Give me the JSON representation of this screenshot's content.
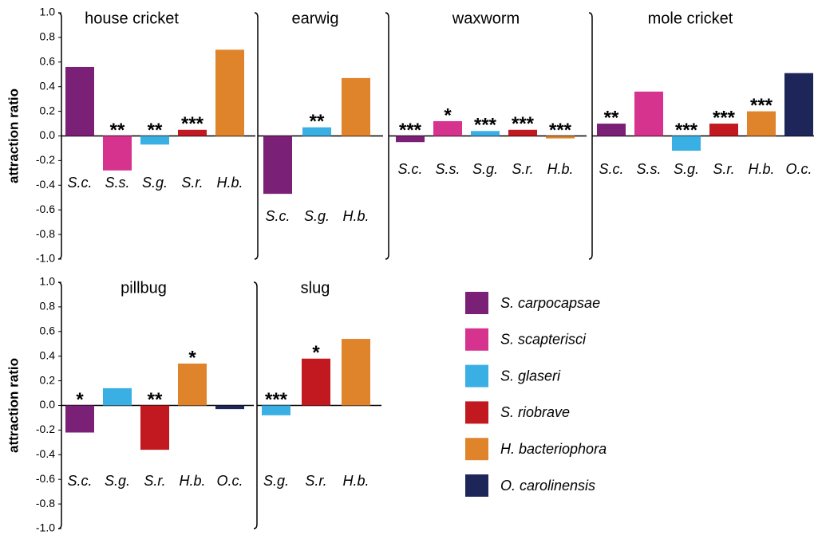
{
  "chart_data": [
    {
      "type": "bar",
      "title": "house cricket",
      "ylabel": "attraction ratio",
      "categories": [
        "S.c.",
        "S.s.",
        "S.g.",
        "S.r.",
        "H.b."
      ],
      "values": [
        0.56,
        -0.28,
        -0.07,
        0.05,
        0.7
      ],
      "colors": [
        "#7b2077",
        "#d6338f",
        "#3aafe4",
        "#c1191f",
        "#e0842c"
      ],
      "annotations": [
        null,
        "**",
        "**",
        "***",
        null
      ],
      "ylim": [
        -1,
        1
      ],
      "yticks": [
        {
          "value": -1,
          "label": "-1.0"
        },
        -0.8,
        -0.6,
        -0.4,
        -0.2,
        {
          "value": 0,
          "label": "0.0"
        },
        0.2,
        0.4,
        0.6,
        0.8,
        {
          "value": 1,
          "label": "1.0"
        }
      ]
    },
    {
      "type": "bar",
      "title": "earwig",
      "categories": [
        "S.c.",
        "S.g.",
        "H.b."
      ],
      "values": [
        -0.47,
        0.07,
        0.47
      ],
      "colors": [
        "#7b2077",
        "#3aafe4",
        "#e0842c"
      ],
      "annotations": [
        null,
        "**",
        null
      ],
      "ylim": [
        -1,
        1
      ]
    },
    {
      "type": "bar",
      "title": "waxworm",
      "categories": [
        "S.c.",
        "S.s.",
        "S.g.",
        "S.r.",
        "H.b."
      ],
      "values": [
        -0.05,
        0.12,
        0.04,
        0.05,
        -0.02
      ],
      "colors": [
        "#7b2077",
        "#d6338f",
        "#3aafe4",
        "#c1191f",
        "#e0842c"
      ],
      "annotations": [
        "***",
        "*",
        "***",
        "***",
        "***"
      ],
      "ylim": [
        -1,
        1
      ]
    },
    {
      "type": "bar",
      "title": "mole cricket",
      "categories": [
        "S.c.",
        "S.s.",
        "S.g.",
        "S.r.",
        "H.b.",
        "O.c."
      ],
      "values": [
        0.1,
        0.36,
        -0.12,
        0.1,
        0.2,
        0.51
      ],
      "colors": [
        "#7b2077",
        "#d6338f",
        "#3aafe4",
        "#c1191f",
        "#e0842c",
        "#1e2659"
      ],
      "annotations": [
        "**",
        null,
        "***",
        "***",
        "***",
        null
      ],
      "ylim": [
        -1,
        1
      ]
    },
    {
      "type": "bar",
      "title": "pillbug",
      "ylabel": "attraction ratio",
      "categories": [
        "S.c.",
        "S.g.",
        "S.r.",
        "H.b.",
        "O.c."
      ],
      "values": [
        -0.22,
        0.14,
        -0.36,
        0.34,
        -0.03
      ],
      "colors": [
        "#7b2077",
        "#3aafe4",
        "#c1191f",
        "#e0842c",
        "#1e2659"
      ],
      "annotations": [
        "*",
        null,
        "**",
        "*",
        null
      ],
      "ylim": [
        -1,
        1
      ],
      "yticks": [
        {
          "value": -1,
          "label": "-1.0"
        },
        -0.8,
        -0.6,
        -0.4,
        -0.2,
        {
          "value": 0,
          "label": "0.0"
        },
        0.2,
        0.4,
        0.6,
        0.8,
        {
          "value": 1,
          "label": "1.0"
        }
      ]
    },
    {
      "type": "bar",
      "title": "slug",
      "categories": [
        "S.g.",
        "S.r.",
        "H.b."
      ],
      "values": [
        -0.08,
        0.38,
        0.54
      ],
      "colors": [
        "#3aafe4",
        "#c1191f",
        "#e0842c"
      ],
      "annotations": [
        "***",
        "*",
        null
      ],
      "ylim": [
        -1,
        1
      ]
    }
  ],
  "legend": [
    {
      "name": "S. carpocapsae",
      "color": "#7b2077"
    },
    {
      "name": "S. scapterisci",
      "color": "#d6338f"
    },
    {
      "name": "S. glaseri",
      "color": "#3aafe4"
    },
    {
      "name": "S. riobrave",
      "color": "#c1191f"
    },
    {
      "name": "H. bacteriophora",
      "color": "#e0842c"
    },
    {
      "name": "O. carolinensis",
      "color": "#1e2659"
    }
  ]
}
